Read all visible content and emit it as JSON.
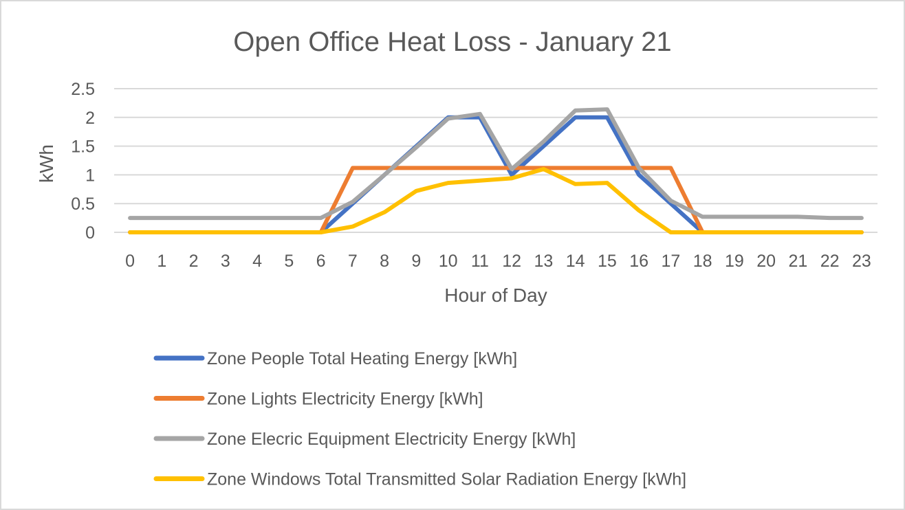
{
  "chart_data": {
    "type": "line",
    "title": "Open Office Heat Loss - January 21",
    "xlabel": "Hour of Day",
    "ylabel": "kWh",
    "ylim": [
      0,
      2.5
    ],
    "yticks": [
      "0",
      "0.5",
      "1",
      "1.5",
      "2",
      "2.5"
    ],
    "grid": true,
    "legend_position": "bottom",
    "categories": [
      "0",
      "1",
      "2",
      "3",
      "4",
      "5",
      "6",
      "7",
      "8",
      "9",
      "10",
      "11",
      "12",
      "13",
      "14",
      "15",
      "16",
      "17",
      "18",
      "19",
      "20",
      "21",
      "22",
      "23"
    ],
    "series": [
      {
        "name": "Zone People Total Heating Energy [kWh]",
        "color": "#4472c4",
        "values": [
          0,
          0,
          0,
          0,
          0,
          0,
          0,
          0.5,
          1.0,
          1.5,
          2.0,
          2.0,
          1.0,
          1.5,
          2.0,
          2.0,
          1.0,
          0.5,
          0,
          0,
          0,
          0,
          0,
          0
        ]
      },
      {
        "name": "Zone Lights Electricity Energy [kWh]",
        "color": "#ed7d31",
        "values": [
          0,
          0,
          0,
          0,
          0,
          0,
          0,
          1.12,
          1.12,
          1.12,
          1.12,
          1.12,
          1.12,
          1.12,
          1.12,
          1.12,
          1.12,
          1.12,
          0,
          0,
          0,
          0,
          0,
          0
        ]
      },
      {
        "name": "Zone Elecric Equipment Electricity Energy [kWh]",
        "color": "#a5a5a5",
        "values": [
          0.25,
          0.25,
          0.25,
          0.25,
          0.25,
          0.25,
          0.25,
          0.53,
          1.0,
          1.48,
          1.98,
          2.06,
          1.1,
          1.58,
          2.12,
          2.14,
          1.12,
          0.55,
          0.27,
          0.27,
          0.27,
          0.27,
          0.25,
          0.25
        ]
      },
      {
        "name": "Zone Windows Total Transmitted Solar Radiation Energy [kWh]",
        "color": "#ffc000",
        "values": [
          0,
          0,
          0,
          0,
          0,
          0,
          0,
          0.1,
          0.35,
          0.72,
          0.86,
          0.9,
          0.94,
          1.1,
          0.84,
          0.86,
          0.38,
          0,
          0,
          0,
          0,
          0,
          0,
          0
        ]
      }
    ]
  }
}
